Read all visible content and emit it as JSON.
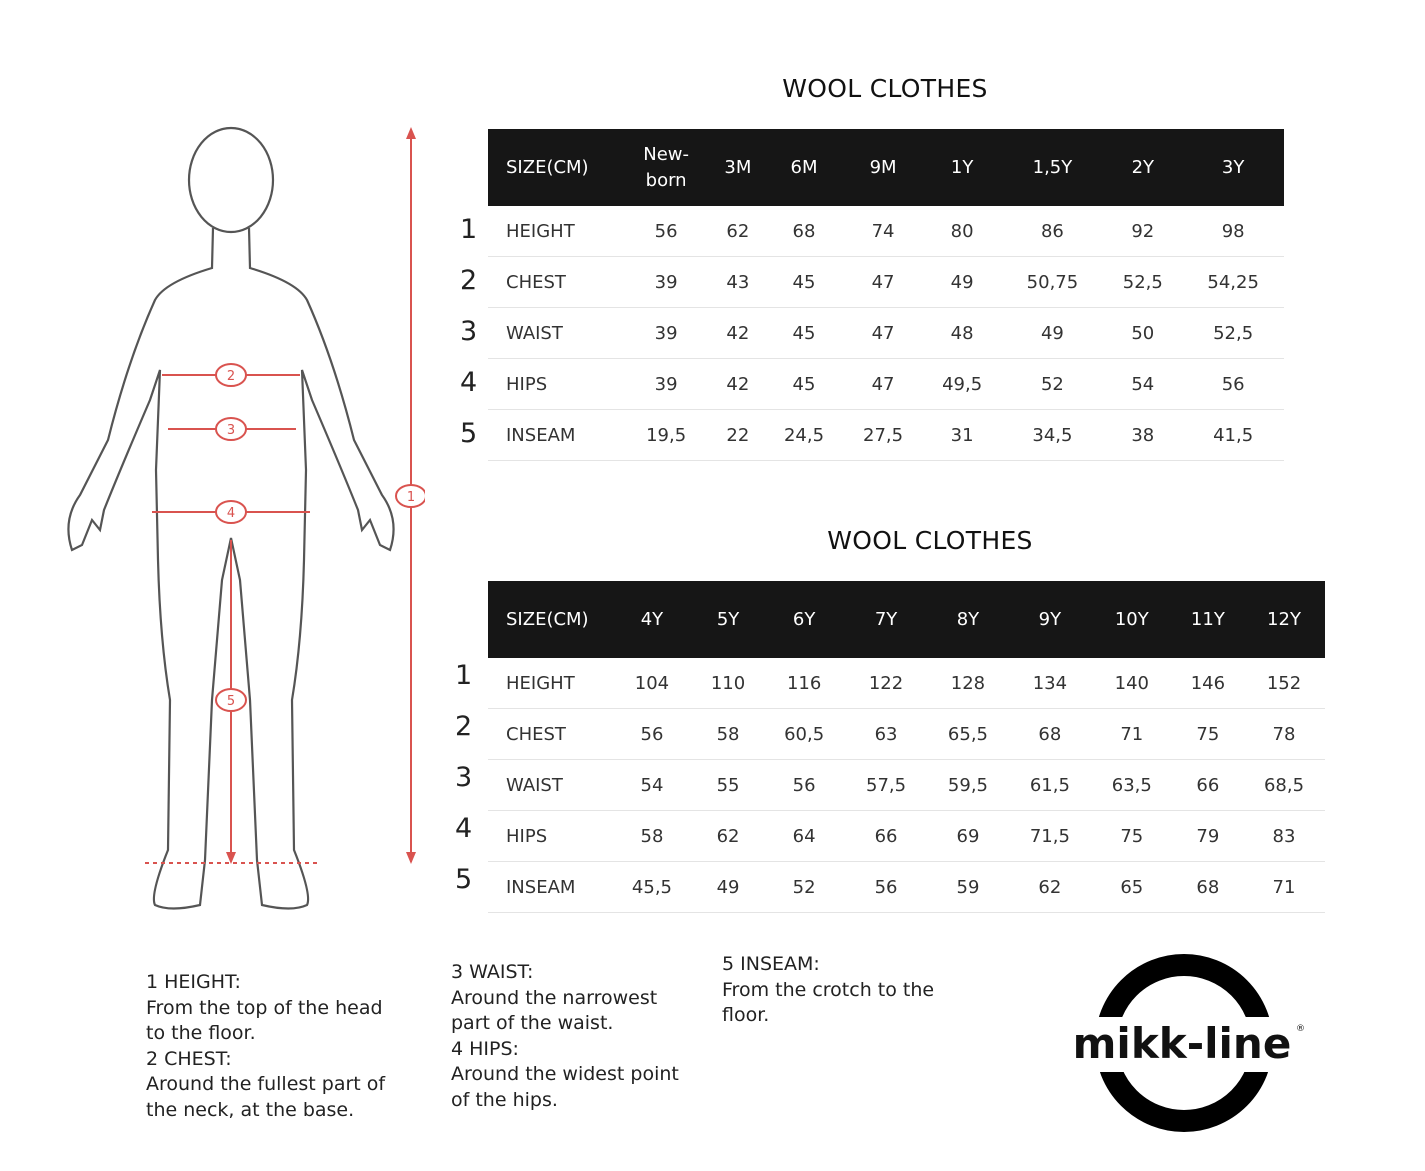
{
  "tables": [
    {
      "title": "WOOL CLOTHES",
      "header": [
        "SIZE(CM)",
        "New-\nborn",
        "3M",
        "6M",
        "9M",
        "1Y",
        "1,5Y",
        "2Y",
        "3Y"
      ],
      "rows": [
        {
          "num": "1",
          "label": "HEIGHT",
          "values": [
            "56",
            "62",
            "68",
            "74",
            "80",
            "86",
            "92",
            "98"
          ]
        },
        {
          "num": "2",
          "label": "CHEST",
          "values": [
            "39",
            "43",
            "45",
            "47",
            "49",
            "50,75",
            "52,5",
            "54,25"
          ]
        },
        {
          "num": "3",
          "label": "WAIST",
          "values": [
            "39",
            "42",
            "45",
            "47",
            "48",
            "49",
            "50",
            "52,5"
          ]
        },
        {
          "num": "4",
          "label": "HIPS",
          "values": [
            "39",
            "42",
            "45",
            "47",
            "49,5",
            "52",
            "54",
            "56"
          ]
        },
        {
          "num": "5",
          "label": "INSEAM",
          "values": [
            "19,5",
            "22",
            "24,5",
            "27,5",
            "31",
            "34,5",
            "38",
            "41,5"
          ]
        }
      ]
    },
    {
      "title": "WOOL CLOTHES",
      "header": [
        "SIZE(CM)",
        "4Y",
        "5Y",
        "6Y",
        "7Y",
        "8Y",
        "9Y",
        "10Y",
        "11Y",
        "12Y"
      ],
      "rows": [
        {
          "num": "1",
          "label": "HEIGHT",
          "values": [
            "104",
            "110",
            "116",
            "122",
            "128",
            "134",
            "140",
            "146",
            "152"
          ]
        },
        {
          "num": "2",
          "label": "CHEST",
          "values": [
            "56",
            "58",
            "60,5",
            "63",
            "65,5",
            "68",
            "71",
            "75",
            "78"
          ]
        },
        {
          "num": "3",
          "label": "WAIST",
          "values": [
            "54",
            "55",
            "56",
            "57,5",
            "59,5",
            "61,5",
            "63,5",
            "66",
            "68,5"
          ]
        },
        {
          "num": "4",
          "label": "HIPS",
          "values": [
            "58",
            "62",
            "64",
            "66",
            "69",
            "71,5",
            "75",
            "79",
            "83"
          ]
        },
        {
          "num": "5",
          "label": "INSEAM",
          "values": [
            "45,5",
            "49",
            "52",
            "56",
            "59",
            "62",
            "65",
            "68",
            "71"
          ]
        }
      ]
    }
  ],
  "figure": {
    "markers": [
      "1",
      "2",
      "3",
      "4",
      "5"
    ],
    "marker_color": "#d9534f"
  },
  "notes": [
    [
      "1 HEIGHT:",
      "From the top of the head",
      "to the floor.",
      "2 CHEST:",
      "Around the fullest part of",
      "the neck, at the base."
    ],
    [
      "3 WAIST:",
      "Around the narrowest",
      "part of the waist.",
      "4 HIPS:",
      "Around the widest point",
      "of the hips."
    ],
    [
      "5 INSEAM:",
      "From the crotch to the",
      "floor."
    ]
  ],
  "logo": {
    "text": "mikk-line",
    "mark": "®"
  },
  "colors": {
    "header_bg": "#161616",
    "accent": "#d9534f"
  }
}
